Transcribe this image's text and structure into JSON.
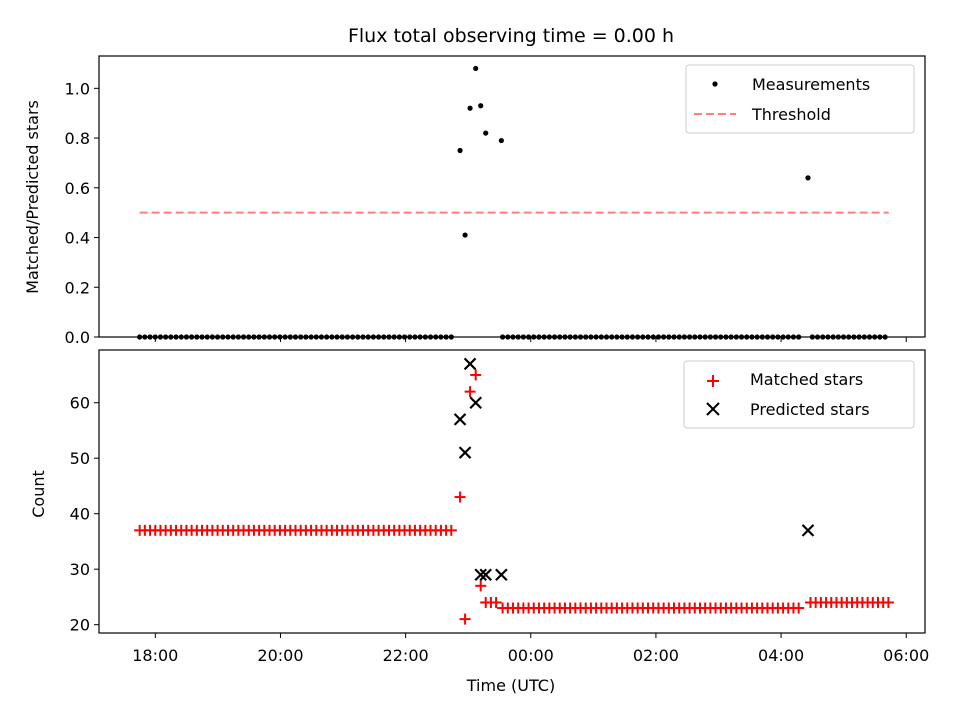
{
  "chart_data": [
    {
      "type": "scatter",
      "title": "Flux total observing time = 0.00 h",
      "xlabel": "",
      "ylabel": "Matched/Predicted stars",
      "xlim": [
        17.1,
        30.3
      ],
      "ylim": [
        0,
        1.13
      ],
      "x_ticks": [
        18,
        20,
        22,
        24,
        26,
        28,
        30
      ],
      "y_ticks": [
        {
          "value": 0.0,
          "label": "0.0"
        },
        {
          "value": 0.2,
          "label": "0.2"
        },
        {
          "value": 0.4,
          "label": "0.4"
        },
        {
          "value": 0.6,
          "label": "0.6"
        },
        {
          "value": 0.8,
          "label": "0.8"
        },
        {
          "value": 1.0,
          "label": "1.0"
        }
      ],
      "legend_position": "top-right",
      "series": [
        {
          "name": "Measurements",
          "kind": "dots",
          "color": "#000000",
          "zero_runs": [
            [
              17.75,
              22.8,
              0.083
            ],
            [
              23.55,
              28.3,
              0.083
            ],
            [
              28.5,
              29.72,
              0.083
            ]
          ],
          "points": [
            {
              "x": 22.87,
              "y": 0.75
            },
            {
              "x": 22.95,
              "y": 0.41
            },
            {
              "x": 23.03,
              "y": 0.92
            },
            {
              "x": 23.12,
              "y": 1.08
            },
            {
              "x": 23.2,
              "y": 0.93
            },
            {
              "x": 23.28,
              "y": 0.82
            },
            {
              "x": 23.53,
              "y": 0.79
            },
            {
              "x": 28.43,
              "y": 0.64
            }
          ]
        },
        {
          "name": "Threshold",
          "kind": "dashed-line",
          "color": "#ff7f7f",
          "x": [
            17.75,
            29.72
          ],
          "y": [
            0.5,
            0.5
          ]
        }
      ]
    },
    {
      "type": "scatter",
      "title": "",
      "xlabel": "Time (UTC)",
      "ylabel": "Count",
      "xlim": [
        17.1,
        30.3
      ],
      "ylim": [
        18.5,
        69.5
      ],
      "x_ticks": [
        {
          "value": 18,
          "label": "18:00"
        },
        {
          "value": 20,
          "label": "20:00"
        },
        {
          "value": 22,
          "label": "22:00"
        },
        {
          "value": 24,
          "label": "00:00"
        },
        {
          "value": 26,
          "label": "02:00"
        },
        {
          "value": 28,
          "label": "04:00"
        },
        {
          "value": 30,
          "label": "06:00"
        }
      ],
      "y_ticks": [
        {
          "value": 20,
          "label": "20"
        },
        {
          "value": 30,
          "label": "30"
        },
        {
          "value": 40,
          "label": "40"
        },
        {
          "value": 50,
          "label": "50"
        },
        {
          "value": 60,
          "label": "60"
        }
      ],
      "legend_position": "top-right",
      "series": [
        {
          "name": "Matched stars",
          "kind": "plus",
          "color": "#ff0000",
          "runs": [
            {
              "x0": 17.75,
              "x1": 22.8,
              "step": 0.083,
              "y": 37
            },
            {
              "x0": 23.28,
              "x1": 23.45,
              "step": 0.083,
              "y": 24
            },
            {
              "x0": 23.55,
              "x1": 28.3,
              "step": 0.083,
              "y": 23
            },
            {
              "x0": 28.47,
              "x1": 29.72,
              "step": 0.083,
              "y": 24
            }
          ],
          "points": [
            {
              "x": 22.87,
              "y": 43
            },
            {
              "x": 22.95,
              "y": 21
            },
            {
              "x": 23.03,
              "y": 62
            },
            {
              "x": 23.12,
              "y": 65
            },
            {
              "x": 23.2,
              "y": 27
            }
          ]
        },
        {
          "name": "Predicted stars",
          "kind": "x",
          "color": "#000000",
          "points": [
            {
              "x": 22.87,
              "y": 57
            },
            {
              "x": 22.95,
              "y": 51
            },
            {
              "x": 23.03,
              "y": 67
            },
            {
              "x": 23.12,
              "y": 60
            },
            {
              "x": 23.2,
              "y": 29
            },
            {
              "x": 23.28,
              "y": 29
            },
            {
              "x": 23.53,
              "y": 29
            },
            {
              "x": 28.43,
              "y": 37
            }
          ]
        }
      ]
    }
  ]
}
